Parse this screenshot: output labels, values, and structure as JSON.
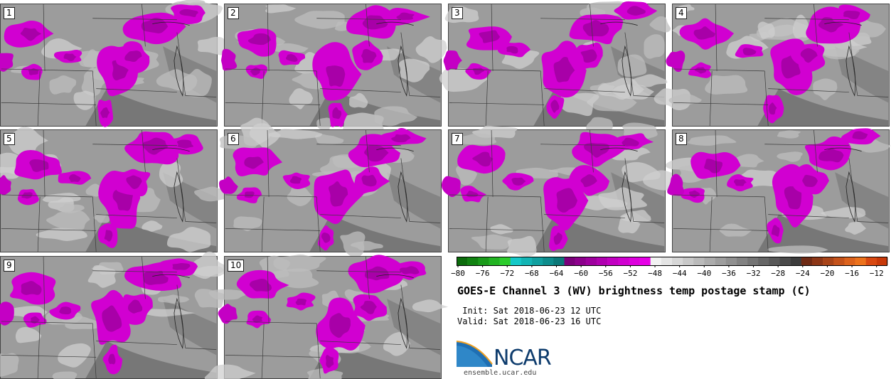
{
  "panels": [
    {
      "label": "1"
    },
    {
      "label": "2"
    },
    {
      "label": "3"
    },
    {
      "label": "4"
    },
    {
      "label": "5"
    },
    {
      "label": "6"
    },
    {
      "label": "7"
    },
    {
      "label": "8"
    },
    {
      "label": "9"
    },
    {
      "label": "10"
    }
  ],
  "colorbar": {
    "tick_labels": [
      "−80",
      "−76",
      "−72",
      "−68",
      "−64",
      "−60",
      "−56",
      "−52",
      "−48",
      "−44",
      "−40",
      "−36",
      "−32",
      "−28",
      "−24",
      "−20",
      "−16",
      "−12"
    ],
    "colors": [
      "#0b6b0b",
      "#118211",
      "#1a9a1a",
      "#22b322",
      "#2ccc2c",
      "#14c8c8",
      "#12b4b4",
      "#10a0a0",
      "#0d8c8c",
      "#0b7878",
      "#7a007a",
      "#8c008c",
      "#9e009e",
      "#b000b0",
      "#c200c2",
      "#d000d0",
      "#dd00dd",
      "#e600e6",
      "#f2f2f2",
      "#e4e4e4",
      "#d6d6d6",
      "#c8c8c8",
      "#bababa",
      "#acacac",
      "#9e9e9e",
      "#909090",
      "#828282",
      "#747474",
      "#666666",
      "#585858",
      "#4a4a4a",
      "#3c3c3c",
      "#6e2a14",
      "#8c3616",
      "#a84418",
      "#c4521a",
      "#dc621c",
      "#ec721c",
      "#d84810",
      "#c83808"
    ]
  },
  "title": "GOES-E Channel 3 (WV) brightness temp postage stamp (C)",
  "init_line": " Init: Sat 2018-06-23 12 UTC",
  "valid_line": "Valid: Sat 2018-06-23 16 UTC",
  "logo": {
    "text": "NCAR",
    "url": "ensemble.ucar.edu"
  }
}
